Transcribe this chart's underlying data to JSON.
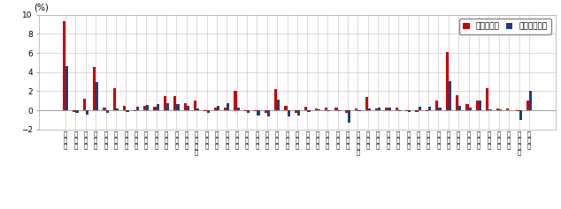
{
  "prefectures": [
    "北\n海\n道",
    "青\n森\n県",
    "岩\n手\n県",
    "宮\n城\n県",
    "秋\n田\n県",
    "山\n形\n県",
    "福\n島\n県",
    "茨\n城\n県",
    "栃\n木\n県",
    "群\n馬\n県",
    "埼\n玉\n県",
    "千\n葉\n県",
    "東\n京\n都",
    "神\n奈\n川\n県",
    "新\n潟\n県",
    "富\n山\n県",
    "石\n川\n県",
    "福\n井\n県",
    "山\n梨\n県",
    "長\n野\n県",
    "岐\n阜\n県",
    "静\n岡\n県",
    "愛\n知\n県",
    "三\n重\n県",
    "滋\n賀\n県",
    "京\n都\n府",
    "大\n阪\n府",
    "兵\n庫\n県",
    "奈\n良\n県",
    "和\n歌\n山\n県",
    "鳥\n取\n県",
    "島\n根\n県",
    "岡\n山\n県",
    "広\n島\n県",
    "山\n口\n県",
    "徳\n島\n県",
    "香\n川\n県",
    "愛\n媛\n県",
    "高\n知\n県",
    "福\n岡\n県",
    "佐\n賀\n県",
    "長\n崎\n県",
    "熊\n本\n県",
    "大\n分\n県",
    "宮\n崎\n県",
    "鹿\n児\n島\n県",
    "沖\n縄\n県"
  ],
  "pref_capital": [
    9.3,
    -0.2,
    1.2,
    4.5,
    0.3,
    2.3,
    0.5,
    -0.1,
    0.5,
    0.4,
    1.5,
    1.5,
    0.8,
    1.0,
    -0.1,
    0.3,
    0.3,
    2.0,
    -0.1,
    -0.1,
    -0.3,
    2.2,
    0.5,
    -0.3,
    0.4,
    0.2,
    0.3,
    0.25,
    -0.3,
    0.2,
    1.4,
    0.2,
    0.3,
    0.3,
    -0.1,
    -0.2,
    -0.1,
    1.0,
    6.1,
    1.6,
    0.7,
    1.0,
    2.3,
    0.2,
    0.2,
    -0.1,
    1.0
  ],
  "pref_avg": [
    4.6,
    -0.3,
    -0.4,
    3.0,
    -0.3,
    0.2,
    -0.2,
    0.4,
    0.6,
    0.7,
    0.8,
    0.7,
    0.5,
    0.2,
    -0.3,
    0.5,
    0.8,
    0.3,
    -0.3,
    -0.5,
    -0.6,
    1.1,
    -0.6,
    -0.5,
    -0.2,
    0.1,
    -0.1,
    -0.1,
    -1.3,
    -0.1,
    0.2,
    0.3,
    0.3,
    -0.1,
    -0.2,
    0.4,
    0.4,
    0.3,
    3.1,
    0.5,
    0.3,
    1.0,
    0.1,
    0.1,
    0.0,
    -1.0,
    2.0
  ],
  "capital_color": "#cc0000",
  "avg_color": "#1f3f7a",
  "ylabel": "(%)",
  "ylim": [
    -2.0,
    10.0
  ],
  "yticks": [
    -2.0,
    0.0,
    2.0,
    4.0,
    6.0,
    8.0,
    10.0
  ],
  "legend_capital": "県庁所在地",
  "legend_avg": "都道府県平均",
  "bg_color": "#ffffff",
  "grid_color": "#cccccc"
}
